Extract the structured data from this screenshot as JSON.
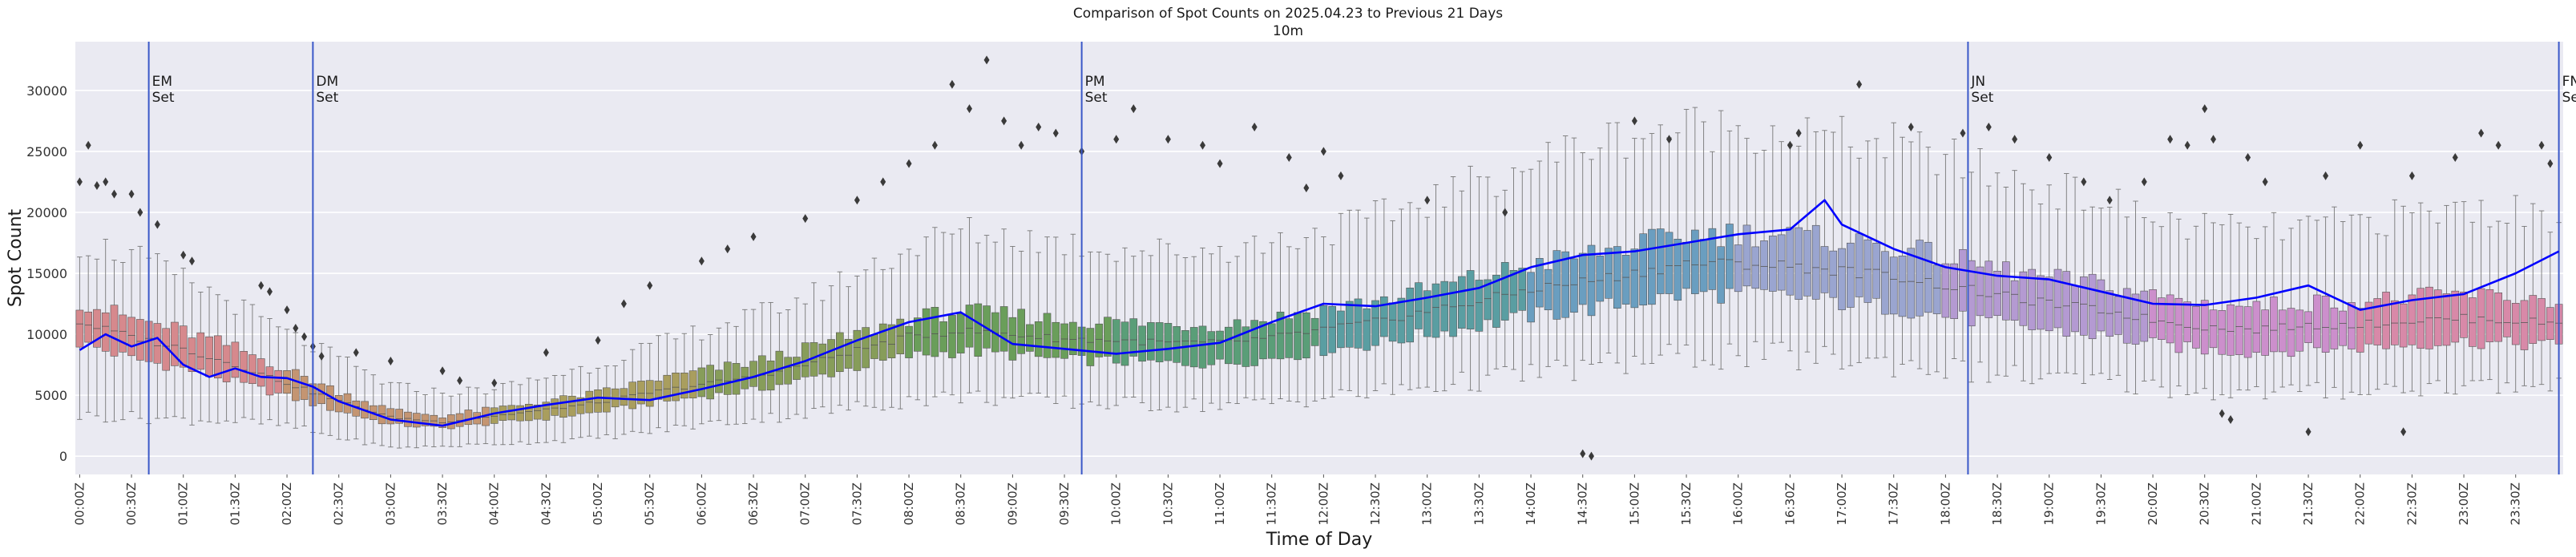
{
  "chart_data": {
    "type": "box",
    "title": "Comparison of Spot Counts on 2025.04.23 to Previous 21 Days",
    "subtitle": "10m",
    "xlabel": "Time of Day",
    "ylabel": "Spot Count",
    "ylim": [
      -1500,
      34000
    ],
    "yticks": [
      0,
      5000,
      10000,
      15000,
      20000,
      25000,
      30000
    ],
    "grid": true,
    "bin_minutes": 5,
    "x_start": "00:00Z",
    "x_end": "23:55Z",
    "xticks": [
      "00:00Z",
      "00:30Z",
      "01:00Z",
      "01:30Z",
      "02:00Z",
      "02:30Z",
      "03:00Z",
      "03:30Z",
      "04:00Z",
      "04:30Z",
      "05:00Z",
      "05:30Z",
      "06:00Z",
      "06:30Z",
      "07:00Z",
      "07:30Z",
      "08:00Z",
      "08:30Z",
      "09:00Z",
      "09:30Z",
      "10:00Z",
      "10:30Z",
      "11:00Z",
      "11:30Z",
      "12:00Z",
      "12:30Z",
      "13:00Z",
      "13:30Z",
      "14:00Z",
      "14:30Z",
      "15:00Z",
      "15:30Z",
      "16:00Z",
      "16:30Z",
      "17:00Z",
      "17:30Z",
      "18:00Z",
      "18:30Z",
      "19:00Z",
      "19:30Z",
      "20:00Z",
      "20:30Z",
      "21:00Z",
      "21:30Z",
      "22:00Z",
      "22:30Z",
      "23:00Z",
      "23:30Z"
    ],
    "median_profile": {
      "x": [
        "00:00Z",
        "00:30Z",
        "01:00Z",
        "01:30Z",
        "02:00Z",
        "02:30Z",
        "03:00Z",
        "03:30Z",
        "04:00Z",
        "04:30Z",
        "05:00Z",
        "05:30Z",
        "06:00Z",
        "06:30Z",
        "07:00Z",
        "07:30Z",
        "08:00Z",
        "08:30Z",
        "09:00Z",
        "09:30Z",
        "10:00Z",
        "10:30Z",
        "11:00Z",
        "11:30Z",
        "12:00Z",
        "12:30Z",
        "13:00Z",
        "13:30Z",
        "14:00Z",
        "14:30Z",
        "15:00Z",
        "15:30Z",
        "16:00Z",
        "16:30Z",
        "17:00Z",
        "17:30Z",
        "18:00Z",
        "18:30Z",
        "19:00Z",
        "19:30Z",
        "20:00Z",
        "20:30Z",
        "21:00Z",
        "21:30Z",
        "22:00Z",
        "22:30Z",
        "23:00Z",
        "23:30Z",
        "23:55Z"
      ],
      "median": [
        11000,
        9800,
        8800,
        7500,
        6000,
        4500,
        3200,
        2800,
        3300,
        3800,
        4400,
        5200,
        5900,
        6500,
        7500,
        8700,
        9800,
        10300,
        10000,
        9600,
        9500,
        9300,
        9300,
        9700,
        10400,
        11000,
        11900,
        12700,
        13700,
        14300,
        15000,
        15800,
        15800,
        15600,
        15200,
        14800,
        14000,
        13200,
        12500,
        12000,
        11200,
        10600,
        10400,
        10700,
        10800,
        11100,
        11300,
        11100,
        10900
      ],
      "q1": [
        9300,
        8000,
        7200,
        6100,
        4900,
        3700,
        2600,
        2300,
        2700,
        3100,
        3600,
        4300,
        4900,
        5400,
        6300,
        7300,
        8200,
        8600,
        8300,
        7900,
        7800,
        7600,
        7600,
        8000,
        8700,
        9200,
        10000,
        10700,
        11500,
        12000,
        12600,
        13300,
        13300,
        13100,
        12600,
        12200,
        11500,
        10900,
        10300,
        9900,
        9200,
        8700,
        8500,
        8800,
        8900,
        9200,
        9400,
        9200,
        9100
      ],
      "q3": [
        12700,
        11300,
        10300,
        8900,
        7100,
        5300,
        3800,
        3300,
        3900,
        4500,
        5200,
        6200,
        7000,
        7700,
        8800,
        10000,
        11300,
        11900,
        11600,
        11100,
        11000,
        10800,
        10800,
        11300,
        12100,
        12700,
        13700,
        14700,
        15700,
        16500,
        17300,
        18200,
        18300,
        18100,
        17700,
        17200,
        16300,
        15400,
        14600,
        14100,
        13200,
        12500,
        12300,
        12600,
        12700,
        13000,
        13300,
        13000,
        12800
      ],
      "whisker_low": [
        3300,
        3200,
        3000,
        2900,
        2500,
        1500,
        700,
        800,
        1000,
        1200,
        1500,
        2000,
        2600,
        3000,
        3500,
        4000,
        4600,
        4900,
        4700,
        4400,
        4300,
        4200,
        4200,
        4400,
        4800,
        5200,
        5700,
        6200,
        6800,
        7200,
        7700,
        8200,
        8300,
        8100,
        7900,
        7600,
        7200,
        6700,
        6300,
        6100,
        5700,
        5300,
        5200,
        5300,
        5400,
        5600,
        5800,
        5700,
        5600
      ],
      "whisker_high": [
        17500,
        16500,
        14500,
        12500,
        10000,
        8000,
        5800,
        5200,
        5500,
        6500,
        7500,
        9000,
        10300,
        11500,
        13000,
        15000,
        17000,
        18500,
        18000,
        17500,
        17000,
        16800,
        17000,
        17500,
        18500,
        19500,
        21000,
        22500,
        24000,
        25500,
        26500,
        27000,
        27000,
        26500,
        26000,
        25500,
        24500,
        23000,
        22000,
        21000,
        19500,
        18700,
        18500,
        18800,
        19300,
        19800,
        20300,
        20000,
        19500
      ]
    },
    "series": [
      {
        "name": "2025.04.23",
        "x": [
          "00:00Z",
          "00:15Z",
          "00:30Z",
          "00:45Z",
          "01:00Z",
          "01:15Z",
          "01:30Z",
          "01:45Z",
          "02:00Z",
          "02:15Z",
          "02:30Z",
          "03:00Z",
          "03:30Z",
          "04:00Z",
          "04:30Z",
          "05:00Z",
          "05:30Z",
          "06:00Z",
          "06:30Z",
          "07:00Z",
          "07:30Z",
          "08:00Z",
          "08:30Z",
          "09:00Z",
          "09:30Z",
          "10:00Z",
          "10:30Z",
          "11:00Z",
          "11:30Z",
          "12:00Z",
          "12:30Z",
          "13:00Z",
          "13:30Z",
          "14:00Z",
          "14:30Z",
          "15:00Z",
          "15:30Z",
          "16:00Z",
          "16:30Z",
          "16:50Z",
          "17:00Z",
          "17:30Z",
          "18:00Z",
          "18:30Z",
          "19:00Z",
          "19:30Z",
          "20:00Z",
          "20:30Z",
          "21:00Z",
          "21:30Z",
          "22:00Z",
          "22:30Z",
          "23:00Z",
          "23:30Z",
          "23:55Z"
        ],
        "values": [
          8700,
          10000,
          9000,
          9700,
          7500,
          6500,
          7200,
          6500,
          6400,
          5700,
          4500,
          3000,
          2500,
          3500,
          4200,
          4800,
          4600,
          5500,
          6500,
          7800,
          9500,
          11000,
          11800,
          9200,
          8800,
          8400,
          8800,
          9300,
          11000,
          12500,
          12300,
          13000,
          13800,
          15500,
          16500,
          16800,
          17500,
          18200,
          18600,
          21000,
          19000,
          17000,
          15500,
          14800,
          14500,
          13500,
          12500,
          12400,
          13000,
          14000,
          12000,
          12800,
          13300,
          15000,
          16800
        ]
      }
    ],
    "outliers": [
      {
        "x": "00:00Z",
        "y": 22500
      },
      {
        "x": "00:05Z",
        "y": 25500
      },
      {
        "x": "00:10Z",
        "y": 22200
      },
      {
        "x": "00:15Z",
        "y": 22500
      },
      {
        "x": "00:20Z",
        "y": 21500
      },
      {
        "x": "00:30Z",
        "y": 21500
      },
      {
        "x": "00:35Z",
        "y": 20000
      },
      {
        "x": "00:45Z",
        "y": 19000
      },
      {
        "x": "01:00Z",
        "y": 16500
      },
      {
        "x": "01:05Z",
        "y": 16000
      },
      {
        "x": "01:45Z",
        "y": 14000
      },
      {
        "x": "01:50Z",
        "y": 13500
      },
      {
        "x": "02:00Z",
        "y": 12000
      },
      {
        "x": "02:05Z",
        "y": 10500
      },
      {
        "x": "02:10Z",
        "y": 9800
      },
      {
        "x": "02:15Z",
        "y": 9000
      },
      {
        "x": "02:20Z",
        "y": 8200
      },
      {
        "x": "02:40Z",
        "y": 8500
      },
      {
        "x": "03:00Z",
        "y": 7800
      },
      {
        "x": "03:30Z",
        "y": 7000
      },
      {
        "x": "03:40Z",
        "y": 6200
      },
      {
        "x": "04:00Z",
        "y": 6000
      },
      {
        "x": "04:30Z",
        "y": 8500
      },
      {
        "x": "05:00Z",
        "y": 9500
      },
      {
        "x": "05:15Z",
        "y": 12500
      },
      {
        "x": "05:30Z",
        "y": 14000
      },
      {
        "x": "06:00Z",
        "y": 16000
      },
      {
        "x": "06:15Z",
        "y": 17000
      },
      {
        "x": "06:30Z",
        "y": 18000
      },
      {
        "x": "07:00Z",
        "y": 19500
      },
      {
        "x": "07:30Z",
        "y": 21000
      },
      {
        "x": "07:45Z",
        "y": 22500
      },
      {
        "x": "08:00Z",
        "y": 24000
      },
      {
        "x": "08:15Z",
        "y": 25500
      },
      {
        "x": "08:25Z",
        "y": 30500
      },
      {
        "x": "08:35Z",
        "y": 28500
      },
      {
        "x": "08:45Z",
        "y": 32500
      },
      {
        "x": "08:55Z",
        "y": 27500
      },
      {
        "x": "09:05Z",
        "y": 25500
      },
      {
        "x": "09:15Z",
        "y": 27000
      },
      {
        "x": "09:25Z",
        "y": 26500
      },
      {
        "x": "09:40Z",
        "y": 25000
      },
      {
        "x": "10:00Z",
        "y": 26000
      },
      {
        "x": "10:10Z",
        "y": 28500
      },
      {
        "x": "10:30Z",
        "y": 26000
      },
      {
        "x": "10:50Z",
        "y": 25500
      },
      {
        "x": "11:00Z",
        "y": 24000
      },
      {
        "x": "11:20Z",
        "y": 27000
      },
      {
        "x": "11:40Z",
        "y": 24500
      },
      {
        "x": "11:50Z",
        "y": 22000
      },
      {
        "x": "12:00Z",
        "y": 25000
      },
      {
        "x": "12:10Z",
        "y": 23000
      },
      {
        "x": "13:00Z",
        "y": 21000
      },
      {
        "x": "13:45Z",
        "y": 20000
      },
      {
        "x": "14:30Z",
        "y": 200
      },
      {
        "x": "14:35Z",
        "y": 0
      },
      {
        "x": "15:00Z",
        "y": 27500
      },
      {
        "x": "15:20Z",
        "y": 26000
      },
      {
        "x": "16:30Z",
        "y": 25500
      },
      {
        "x": "16:35Z",
        "y": 26500
      },
      {
        "x": "17:10Z",
        "y": 30500
      },
      {
        "x": "17:40Z",
        "y": 27000
      },
      {
        "x": "18:10Z",
        "y": 26500
      },
      {
        "x": "18:25Z",
        "y": 27000
      },
      {
        "x": "18:40Z",
        "y": 26000
      },
      {
        "x": "19:00Z",
        "y": 24500
      },
      {
        "x": "19:20Z",
        "y": 22500
      },
      {
        "x": "19:35Z",
        "y": 21000
      },
      {
        "x": "19:55Z",
        "y": 22500
      },
      {
        "x": "20:10Z",
        "y": 26000
      },
      {
        "x": "20:20Z",
        "y": 25500
      },
      {
        "x": "20:30Z",
        "y": 28500
      },
      {
        "x": "20:35Z",
        "y": 26000
      },
      {
        "x": "20:40Z",
        "y": 3500
      },
      {
        "x": "20:45Z",
        "y": 3000
      },
      {
        "x": "20:55Z",
        "y": 24500
      },
      {
        "x": "21:05Z",
        "y": 22500
      },
      {
        "x": "21:30Z",
        "y": 2000
      },
      {
        "x": "21:40Z",
        "y": 23000
      },
      {
        "x": "22:00Z",
        "y": 25500
      },
      {
        "x": "22:25Z",
        "y": 2000
      },
      {
        "x": "22:30Z",
        "y": 23000
      },
      {
        "x": "22:55Z",
        "y": 24500
      },
      {
        "x": "23:10Z",
        "y": 26500
      },
      {
        "x": "23:20Z",
        "y": 25500
      },
      {
        "x": "23:45Z",
        "y": 25500
      },
      {
        "x": "23:50Z",
        "y": 24000
      }
    ],
    "events": [
      {
        "x": "00:40Z",
        "label": "EM\nSet"
      },
      {
        "x": "02:15Z",
        "label": "DM\nSet"
      },
      {
        "x": "09:40Z",
        "label": "PM\nSet"
      },
      {
        "x": "18:13Z",
        "label": "JN\nSet"
      },
      {
        "x": "23:55Z",
        "label": "FN\nSet"
      }
    ],
    "colors": {
      "line": "#0000ff",
      "event_line": "#3a58c8",
      "background": "#eaeaf2",
      "grid": "#ffffff",
      "outlier": "#3a3a3a",
      "box_edge": "#555555",
      "palette": [
        "#d6898d",
        "#c49572",
        "#a99e5e",
        "#879d5a",
        "#6a9e5a",
        "#5a9e78",
        "#5a9ea2",
        "#6a9ec0",
        "#9aa5d0",
        "#b49ad2",
        "#cc8fcc",
        "#d889a8"
      ]
    }
  }
}
